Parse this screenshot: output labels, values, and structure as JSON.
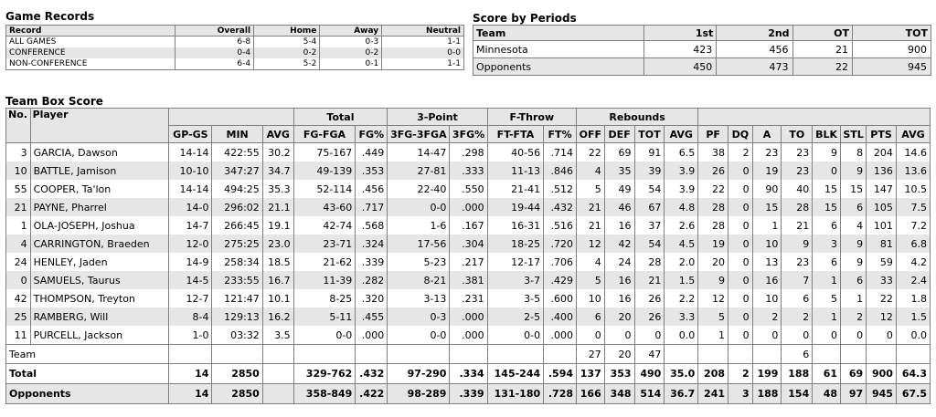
{
  "game_records": {
    "title": "Game Records",
    "headers": [
      "Record",
      "Overall",
      "Home",
      "Away",
      "Neutral"
    ],
    "rows": [
      [
        "ALL GAMES",
        "6-8",
        "5-4",
        "0-3",
        "1-1"
      ],
      [
        "CONFERENCE",
        "0-4",
        "0-2",
        "0-2",
        "0-0"
      ],
      [
        "NON-CONFERENCE",
        "6-4",
        "5-2",
        "0-1",
        "1-1"
      ]
    ]
  },
  "score_by_periods": {
    "title": "Score by Periods",
    "headers": [
      "Team",
      "1st",
      "2nd",
      "OT",
      "TOT"
    ],
    "rows": [
      [
        "Minnesota",
        "423",
        "456",
        "21",
        "900"
      ],
      [
        "Opponents",
        "450",
        "473",
        "22",
        "945"
      ]
    ]
  },
  "box_score": {
    "title": "Team Box Score",
    "group_headers": {
      "no": "No.",
      "player": "Player",
      "total": "Total",
      "three": "3-Point",
      "ft": "F-Throw",
      "reb": "Rebounds"
    },
    "col_headers": [
      "GP-GS",
      "MIN",
      "AVG",
      "FG-FGA",
      "FG%",
      "3FG-3FGA",
      "3FG%",
      "FT-FTA",
      "FT%",
      "OFF",
      "DEF",
      "TOT",
      "AVG",
      "PF",
      "DQ",
      "A",
      "TO",
      "BLK",
      "STL",
      "PTS",
      "AVG"
    ],
    "players": [
      [
        "3",
        "GARCIA, Dawson",
        "14-14",
        "422:55",
        "30.2",
        "75-167",
        ".449",
        "14-47",
        ".298",
        "40-56",
        ".714",
        "22",
        "69",
        "91",
        "6.5",
        "38",
        "2",
        "23",
        "23",
        "9",
        "8",
        "204",
        "14.6"
      ],
      [
        "10",
        "BATTLE, Jamison",
        "10-10",
        "347:27",
        "34.7",
        "49-139",
        ".353",
        "27-81",
        ".333",
        "11-13",
        ".846",
        "4",
        "35",
        "39",
        "3.9",
        "26",
        "0",
        "19",
        "23",
        "0",
        "9",
        "136",
        "13.6"
      ],
      [
        "55",
        "COOPER, Ta'lon",
        "14-14",
        "494:25",
        "35.3",
        "52-114",
        ".456",
        "22-40",
        ".550",
        "21-41",
        ".512",
        "5",
        "49",
        "54",
        "3.9",
        "22",
        "0",
        "90",
        "40",
        "15",
        "15",
        "147",
        "10.5"
      ],
      [
        "21",
        "PAYNE, Pharrel",
        "14-0",
        "296:02",
        "21.1",
        "43-60",
        ".717",
        "0-0",
        ".000",
        "19-44",
        ".432",
        "21",
        "46",
        "67",
        "4.8",
        "28",
        "0",
        "15",
        "28",
        "15",
        "6",
        "105",
        "7.5"
      ],
      [
        "1",
        "OLA-JOSEPH, Joshua",
        "14-7",
        "266:45",
        "19.1",
        "42-74",
        ".568",
        "1-6",
        ".167",
        "16-31",
        ".516",
        "21",
        "16",
        "37",
        "2.6",
        "28",
        "0",
        "1",
        "21",
        "6",
        "4",
        "101",
        "7.2"
      ],
      [
        "4",
        "CARRINGTON, Braeden",
        "12-0",
        "275:25",
        "23.0",
        "23-71",
        ".324",
        "17-56",
        ".304",
        "18-25",
        ".720",
        "12",
        "42",
        "54",
        "4.5",
        "19",
        "0",
        "10",
        "9",
        "3",
        "9",
        "81",
        "6.8"
      ],
      [
        "24",
        "HENLEY, Jaden",
        "14-9",
        "258:34",
        "18.5",
        "21-62",
        ".339",
        "5-23",
        ".217",
        "12-17",
        ".706",
        "4",
        "24",
        "28",
        "2.0",
        "20",
        "0",
        "13",
        "23",
        "6",
        "9",
        "59",
        "4.2"
      ],
      [
        "0",
        "SAMUELS, Taurus",
        "14-5",
        "233:55",
        "16.7",
        "11-39",
        ".282",
        "8-21",
        ".381",
        "3-7",
        ".429",
        "5",
        "16",
        "21",
        "1.5",
        "9",
        "0",
        "16",
        "7",
        "1",
        "6",
        "33",
        "2.4"
      ],
      [
        "42",
        "THOMPSON, Treyton",
        "12-7",
        "121:47",
        "10.1",
        "8-25",
        ".320",
        "3-13",
        ".231",
        "3-5",
        ".600",
        "10",
        "16",
        "26",
        "2.2",
        "12",
        "0",
        "10",
        "6",
        "5",
        "1",
        "22",
        "1.8"
      ],
      [
        "25",
        "RAMBERG, Will",
        "8-4",
        "129:13",
        "16.2",
        "5-11",
        ".455",
        "0-3",
        ".000",
        "2-5",
        ".400",
        "6",
        "20",
        "26",
        "3.3",
        "5",
        "0",
        "2",
        "2",
        "1",
        "2",
        "12",
        "1.5"
      ],
      [
        "11",
        "PURCELL, Jackson",
        "1-0",
        "03:32",
        "3.5",
        "0-0",
        ".000",
        "0-0",
        ".000",
        "0-0",
        ".000",
        "0",
        "0",
        "0",
        "0.0",
        "1",
        "0",
        "0",
        "0",
        "0",
        "0",
        "0",
        "0.0"
      ]
    ],
    "team_row": {
      "label": "Team",
      "off": "27",
      "def": "20",
      "tot": "47",
      "to": "6"
    },
    "total_row": [
      "Total",
      "14",
      "2850",
      "",
      "329-762",
      ".432",
      "97-290",
      ".334",
      "145-244",
      ".594",
      "137",
      "353",
      "490",
      "35.0",
      "208",
      "2",
      "199",
      "188",
      "61",
      "69",
      "900",
      "64.3"
    ],
    "opp_row": [
      "Opponents",
      "14",
      "2850",
      "",
      "358-849",
      ".422",
      "98-289",
      ".339",
      "131-180",
      ".728",
      "166",
      "348",
      "514",
      "36.7",
      "241",
      "3",
      "188",
      "154",
      "48",
      "97",
      "945",
      "67.5"
    ]
  }
}
